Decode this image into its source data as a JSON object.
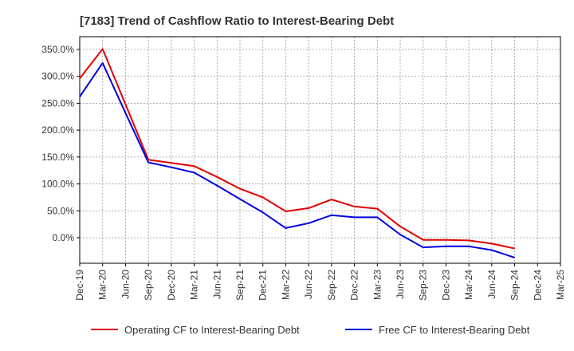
{
  "chart_data": {
    "type": "line",
    "title": "[7183]  Trend of Cashflow Ratio to Interest-Bearing Debt",
    "xlabel": "",
    "ylabel": "",
    "categories": [
      "Dec-19",
      "Mar-20",
      "Jun-20",
      "Sep-20",
      "Dec-20",
      "Mar-21",
      "Jun-21",
      "Sep-21",
      "Dec-21",
      "Mar-22",
      "Jun-22",
      "Sep-22",
      "Dec-22",
      "Mar-23",
      "Jun-23",
      "Sep-23",
      "Dec-23",
      "Mar-24",
      "Jun-24",
      "Sep-24",
      "Dec-24",
      "Mar-25"
    ],
    "y_ticks": [
      "350.0%",
      "300.0%",
      "250.0%",
      "200.0%",
      "150.0%",
      "100.0%",
      "50.0%",
      "0.0%"
    ],
    "ylim": [
      -45,
      360
    ],
    "grid": true,
    "legend_position": "bottom",
    "series": [
      {
        "name": "Operating CF to Interest-Bearing Debt",
        "color": "#e00000",
        "values": [
          296,
          351,
          248,
          145,
          139,
          133,
          113,
          91,
          75,
          49,
          55,
          71,
          58,
          54,
          21,
          -4,
          -4,
          -5,
          -11,
          -20,
          null,
          null
        ]
      },
      {
        "name": "Free CF to Interest-Bearing Debt",
        "color": "#0000e0",
        "values": [
          262,
          325,
          232,
          140,
          131,
          121,
          97,
          72,
          47,
          18,
          27,
          42,
          38,
          38,
          6,
          -18,
          -16,
          -16,
          -23,
          -37,
          null,
          null
        ]
      }
    ]
  }
}
